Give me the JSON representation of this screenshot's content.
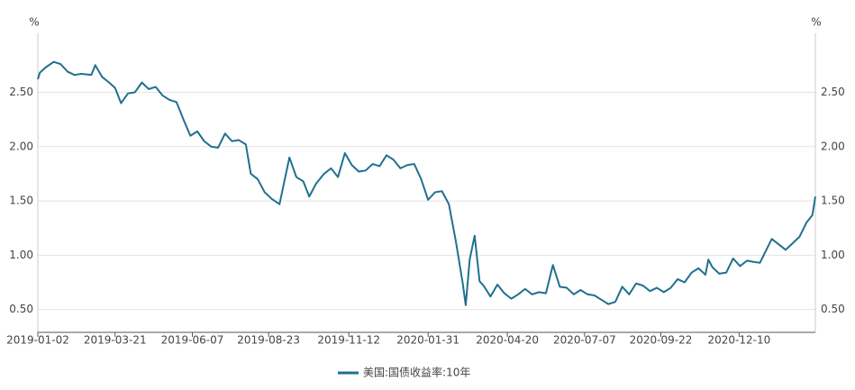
{
  "chart_data": {
    "type": "line",
    "y_unit": "%",
    "x": [
      "2019-01-02",
      "2019-01-04",
      "2019-01-10",
      "2019-01-18",
      "2019-01-25",
      "2019-02-01",
      "2019-02-08",
      "2019-02-15",
      "2019-02-25",
      "2019-03-01",
      "2019-03-08",
      "2019-03-15",
      "2019-03-21",
      "2019-03-27",
      "2019-04-03",
      "2019-04-10",
      "2019-04-17",
      "2019-04-24",
      "2019-05-01",
      "2019-05-08",
      "2019-05-15",
      "2019-05-22",
      "2019-05-29",
      "2019-06-05",
      "2019-06-12",
      "2019-06-19",
      "2019-06-26",
      "2019-07-03",
      "2019-07-10",
      "2019-07-17",
      "2019-07-24",
      "2019-07-31",
      "2019-08-05",
      "2019-08-12",
      "2019-08-19",
      "2019-08-26",
      "2019-09-03",
      "2019-09-13",
      "2019-09-20",
      "2019-09-27",
      "2019-10-03",
      "2019-10-10",
      "2019-10-18",
      "2019-10-25",
      "2019-11-01",
      "2019-11-08",
      "2019-11-15",
      "2019-11-22",
      "2019-11-29",
      "2019-12-06",
      "2019-12-13",
      "2019-12-20",
      "2019-12-27",
      "2020-01-03",
      "2020-01-10",
      "2020-01-17",
      "2020-01-24",
      "2020-01-31",
      "2020-02-07",
      "2020-02-14",
      "2020-02-21",
      "2020-02-28",
      "2020-03-06",
      "2020-03-09",
      "2020-03-13",
      "2020-03-18",
      "2020-03-23",
      "2020-03-27",
      "2020-04-03",
      "2020-04-10",
      "2020-04-17",
      "2020-04-24",
      "2020-05-01",
      "2020-05-08",
      "2020-05-15",
      "2020-05-22",
      "2020-05-29",
      "2020-06-05",
      "2020-06-12",
      "2020-06-19",
      "2020-06-26",
      "2020-07-03",
      "2020-07-10",
      "2020-07-17",
      "2020-07-24",
      "2020-07-31",
      "2020-08-07",
      "2020-08-14",
      "2020-08-21",
      "2020-08-28",
      "2020-09-04",
      "2020-09-11",
      "2020-09-18",
      "2020-09-25",
      "2020-10-02",
      "2020-10-09",
      "2020-10-16",
      "2020-10-23",
      "2020-10-30",
      "2020-11-06",
      "2020-11-09",
      "2020-11-13",
      "2020-11-20",
      "2020-11-27",
      "2020-12-04",
      "2020-12-11",
      "2020-12-18",
      "2020-12-24",
      "2020-12-31",
      "2021-01-06",
      "2021-01-12",
      "2021-01-19",
      "2021-01-26",
      "2021-02-02",
      "2021-02-09",
      "2021-02-16",
      "2021-02-22",
      "2021-02-25"
    ],
    "series": [
      {
        "name": "美国:国债收益率:10年",
        "color": "#21708f",
        "values": [
          2.62,
          2.68,
          2.73,
          2.78,
          2.76,
          2.69,
          2.66,
          2.67,
          2.66,
          2.75,
          2.64,
          2.59,
          2.54,
          2.4,
          2.49,
          2.5,
          2.59,
          2.53,
          2.55,
          2.47,
          2.43,
          2.41,
          2.25,
          2.1,
          2.14,
          2.05,
          2.0,
          1.99,
          2.12,
          2.05,
          2.06,
          2.02,
          1.75,
          1.7,
          1.58,
          1.52,
          1.47,
          1.9,
          1.72,
          1.68,
          1.54,
          1.66,
          1.75,
          1.8,
          1.72,
          1.94,
          1.83,
          1.77,
          1.78,
          1.84,
          1.82,
          1.92,
          1.88,
          1.8,
          1.83,
          1.84,
          1.7,
          1.51,
          1.58,
          1.59,
          1.47,
          1.13,
          0.74,
          0.54,
          0.96,
          1.18,
          0.76,
          0.72,
          0.62,
          0.73,
          0.65,
          0.6,
          0.64,
          0.69,
          0.64,
          0.66,
          0.65,
          0.91,
          0.71,
          0.7,
          0.64,
          0.68,
          0.64,
          0.63,
          0.59,
          0.55,
          0.57,
          0.71,
          0.64,
          0.74,
          0.72,
          0.67,
          0.7,
          0.66,
          0.7,
          0.78,
          0.75,
          0.84,
          0.88,
          0.82,
          0.96,
          0.89,
          0.83,
          0.84,
          0.97,
          0.9,
          0.95,
          0.94,
          0.93,
          1.04,
          1.15,
          1.1,
          1.05,
          1.11,
          1.17,
          1.3,
          1.37,
          1.54
        ]
      }
    ],
    "xlim": [
      "2019-01-02",
      "2021-02-25"
    ],
    "xticks": [
      "2019-01-02",
      "2019-03-21",
      "2019-06-07",
      "2019-08-23",
      "2019-11-12",
      "2020-01-31",
      "2020-04-20",
      "2020-07-07",
      "2020-09-22",
      "2020-12-10"
    ],
    "ylim": [
      0.29,
      2.96
    ],
    "yticks": [
      {
        "value": 0.5,
        "label": "0.50"
      },
      {
        "value": 1,
        "label": "1.00"
      },
      {
        "value": 1.5,
        "label": "1.50"
      },
      {
        "value": 2,
        "label": "2.00"
      },
      {
        "value": 2.5,
        "label": "2.50"
      }
    ],
    "grid": true
  }
}
